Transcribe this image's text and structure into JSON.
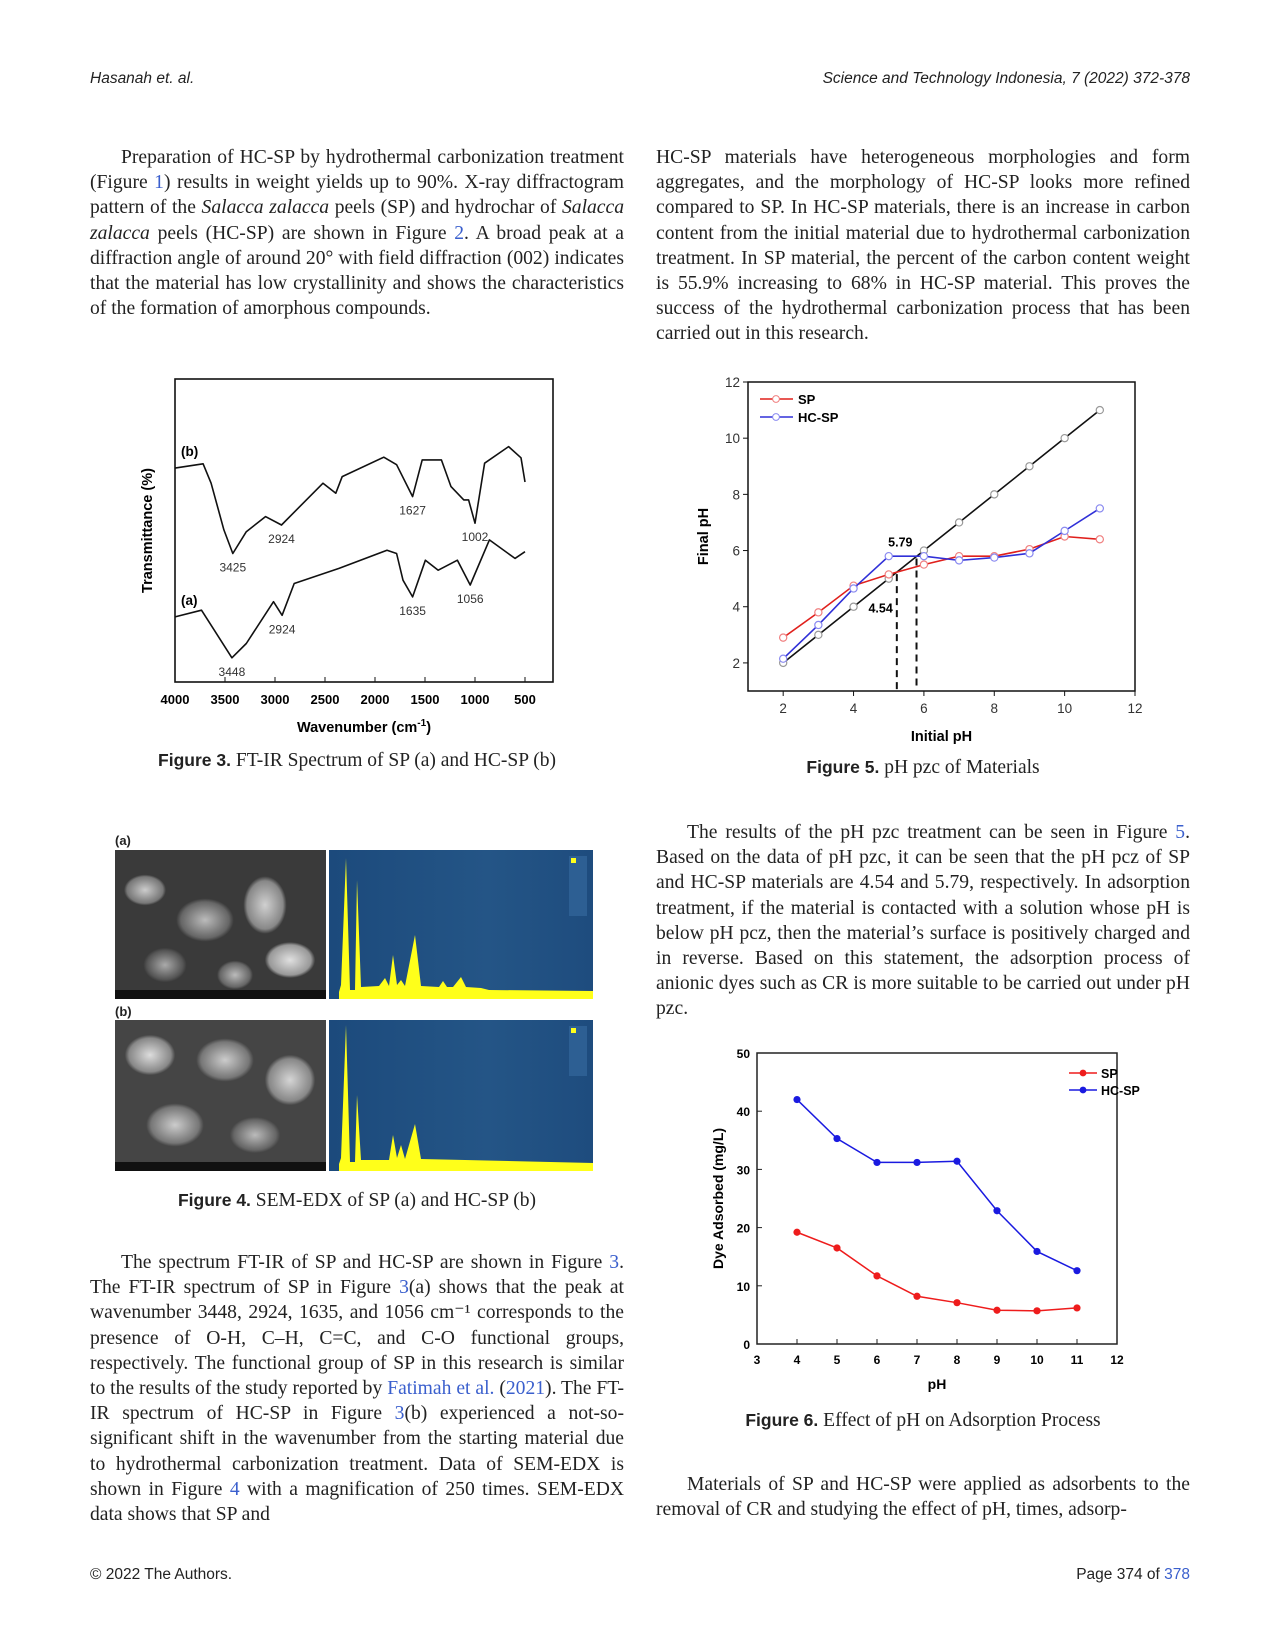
{
  "header": {
    "left": "Hasanah et. al.",
    "right": "Science and Technology Indonesia, 7 (2022) 372-378"
  },
  "footer": {
    "copyright": "© 2022 The Authors.",
    "page_prefix": "Page 374 of ",
    "page_total": "378"
  },
  "paragraphs": {
    "left1": [
      {
        "t": "Preparation of HC-SP by hydrothermal carbonization treatment (Figure "
      },
      {
        "t": "1",
        "link": true
      },
      {
        "t": ") results in weight yields up to 90%. X-ray diffractogram pattern of the "
      },
      {
        "t": "Salacca zalacca",
        "i": true
      },
      {
        "t": " peels (SP) and hydrochar of "
      },
      {
        "t": "Salacca zalacca",
        "i": true
      },
      {
        "t": " peels (HC-SP) are shown in Figure "
      },
      {
        "t": "2",
        "link": true
      },
      {
        "t": ". A broad peak at a diffraction angle of around 20° with field diffraction (002) indicates that the material has low crystallinity and shows the characteristics of the formation of amorphous compounds."
      }
    ],
    "left2": [
      {
        "t": "The spectrum FT-IR of SP and HC-SP are shown in Figure "
      },
      {
        "t": "3",
        "link": true
      },
      {
        "t": ". The FT-IR spectrum of SP in Figure "
      },
      {
        "t": "3",
        "link": true
      },
      {
        "t": "(a) shows that the peak at wavenumber 3448, 2924, 1635, and 1056 cm⁻¹ corresponds to the presence of O-H, C–H, C=C, and C-O functional groups, respectively. The functional group of SP in this research is similar to the results of the study reported by "
      },
      {
        "t": "Fatimah et al.",
        "link": true
      },
      {
        "t": " ("
      },
      {
        "t": "2021",
        "link": true
      },
      {
        "t": "). The FT-IR spectrum of HC-SP in Figure "
      },
      {
        "t": "3",
        "link": true
      },
      {
        "t": "(b) experienced a not-so-significant shift in the wavenumber from the starting material due to hydrothermal carbonization treatment. Data of SEM-EDX is shown in Figure "
      },
      {
        "t": "4",
        "link": true
      },
      {
        "t": " with a magnification of 250 times. SEM-EDX data shows that SP and"
      }
    ],
    "right1": [
      {
        "t": "HC-SP materials have heterogeneous morphologies and form aggregates, and the morphology of HC-SP looks more refined compared to SP. In HC-SP materials, there is an increase in carbon content from the initial material due to hydrothermal carbonization treatment. In SP material, the percent of the carbon content weight is 55.9% increasing to 68% in HC-SP material. This proves the success of the hydrothermal carbonization process that has been carried out in this research."
      }
    ],
    "right2": [
      {
        "t": "The results of the pH pzc treatment can be seen in Figure "
      },
      {
        "t": "5",
        "link": true
      },
      {
        "t": ". Based on the data of pH pzc, it can be seen that the pH pcz of SP and HC-SP materials are 4.54 and 5.79, respectively. In adsorption treatment, if the material is contacted with a solution whose pH is below pH pcz, then the material’s surface is positively charged and in reverse. Based on this statement, the adsorption process of anionic dyes such as CR is more suitable to be carried out under pH pzc."
      }
    ],
    "right3": [
      {
        "t": "Materials of SP and HC-SP were applied as adsorbents to the removal of CR and studying the effect of pH, times, adsorp-"
      }
    ]
  },
  "figures": {
    "fig3": {
      "label": "Figure 3.",
      "caption": " FT-IR Spectrum of SP (a) and HC-SP (b)"
    },
    "fig4": {
      "label": "Figure 4.",
      "caption": " SEM-EDX of SP (a) and HC-SP (b)",
      "panel_a": "(a)",
      "panel_b": "(b)"
    },
    "fig5": {
      "label": "Figure 5.",
      "caption": " pH pzc of Materials"
    },
    "fig6": {
      "label": "Figure 6.",
      "caption": " Effect of pH on Adsorption Process"
    }
  },
  "chart_data": [
    {
      "id": "fig3",
      "type": "line",
      "xlabel": "Wavenumber (cm",
      "xlabel_sup": "-1",
      "xlabel_end": ")",
      "ylabel": "Transmittance (%)",
      "xlim": [
        4000,
        500
      ],
      "xticks": [
        "4000",
        "3500",
        "3000",
        "2500",
        "2000",
        "1500",
        "1000",
        "500"
      ],
      "series": [
        {
          "name": "(b)",
          "color": "#111111",
          "points": [
            [
              4000,
              70.6
            ],
            [
              3719,
              72
            ],
            [
              3639,
              65.6
            ],
            [
              3511,
              50.2
            ],
            [
              3422,
              42.4
            ],
            [
              3287,
              49.6
            ],
            [
              3095,
              54.6
            ],
            [
              2935,
              51.8
            ],
            [
              2839,
              55
            ],
            [
              2520,
              65.6
            ],
            [
              2392,
              62.3
            ],
            [
              2328,
              67.8
            ],
            [
              1912,
              74.2
            ],
            [
              1784,
              71.7
            ],
            [
              1624,
              61.2
            ],
            [
              1528,
              73.3
            ],
            [
              1336,
              73.3
            ],
            [
              1240,
              64.5
            ],
            [
              1112,
              60.1
            ],
            [
              1064,
              60.1
            ],
            [
              1000,
              52.4
            ],
            [
              904,
              72.2
            ],
            [
              664,
              77.7
            ],
            [
              540,
              74
            ],
            [
              500,
              66
            ]
          ]
        },
        {
          "name": "(a)",
          "color": "#111111",
          "points": [
            [
              4000,
              21.5
            ],
            [
              3735,
              23.7
            ],
            [
              3607,
              17.1
            ],
            [
              3431,
              8
            ],
            [
              3287,
              12.7
            ],
            [
              3015,
              26.5
            ],
            [
              2929,
              22
            ],
            [
              2808,
              32.5
            ],
            [
              2360,
              37.5
            ],
            [
              1880,
              43.5
            ],
            [
              1784,
              42.4
            ],
            [
              1720,
              33.6
            ],
            [
              1624,
              28.1
            ],
            [
              1496,
              40.2
            ],
            [
              1368,
              36.9
            ],
            [
              1176,
              40.2
            ],
            [
              1048,
              32
            ],
            [
              856,
              46.9
            ],
            [
              600,
              40.8
            ],
            [
              500,
              43
            ]
          ]
        }
      ],
      "peak_labels": [
        {
          "text": "3425",
          "wn": 3422,
          "t": 42.4
        },
        {
          "text": "2924",
          "wn": 2935,
          "t": 51.8
        },
        {
          "text": "1627",
          "wn": 1624,
          "t": 61.2
        },
        {
          "text": "1002",
          "wn": 1000,
          "t": 52.4
        },
        {
          "text": "3448",
          "wn": 3431,
          "t": 8
        },
        {
          "text": "2924",
          "wn": 2929,
          "t": 22
        },
        {
          "text": "1635",
          "wn": 1624,
          "t": 28.1
        },
        {
          "text": "1056",
          "wn": 1048,
          "t": 32
        }
      ]
    },
    {
      "id": "fig5",
      "type": "line",
      "xlabel": "Initial pH",
      "ylabel": "Final pH",
      "xlim": [
        1,
        12
      ],
      "ylim": [
        1,
        12
      ],
      "xticks": [
        2,
        4,
        6,
        8,
        10,
        12
      ],
      "yticks": [
        2,
        4,
        6,
        8,
        10,
        12
      ],
      "x": [
        2,
        3,
        4,
        5,
        6,
        7,
        8,
        9,
        10,
        11
      ],
      "reference": {
        "name": "pHi = pHf",
        "color": "#111111",
        "values": [
          2,
          3,
          4,
          5,
          6,
          7,
          8,
          9,
          10,
          11
        ]
      },
      "series": [
        {
          "name": "SP",
          "color": "#e0201c",
          "values": [
            2.9,
            3.8,
            4.75,
            5.15,
            5.5,
            5.8,
            5.8,
            6.05,
            6.5,
            6.4
          ]
        },
        {
          "name": "HC-SP",
          "color": "#3030d8",
          "values": [
            2.15,
            3.35,
            4.65,
            5.8,
            5.8,
            5.65,
            5.75,
            5.9,
            6.7,
            7.5
          ]
        }
      ],
      "annotations": [
        {
          "text": "4.54",
          "x": 5.23
        },
        {
          "text": "5.79",
          "x": 5.79
        }
      ],
      "legend": "top-left"
    },
    {
      "id": "fig6",
      "type": "line",
      "xlabel": "pH",
      "ylabel": "Dye Adsorbed (mg/L)",
      "xlim": [
        3,
        12
      ],
      "ylim": [
        0,
        50
      ],
      "xticks": [
        3,
        4,
        5,
        6,
        7,
        8,
        9,
        10,
        11,
        12
      ],
      "yticks": [
        0,
        10,
        20,
        30,
        40,
        50
      ],
      "x": [
        4,
        5,
        6,
        7,
        8,
        9,
        10,
        11
      ],
      "series": [
        {
          "name": "SP",
          "color": "#ee1c1c",
          "values": [
            19.2,
            16.5,
            11.7,
            8.2,
            7.1,
            5.8,
            5.7,
            6.2
          ]
        },
        {
          "name": "HC-SP",
          "color": "#1a1ae0",
          "values": [
            42,
            35.3,
            31.2,
            31.2,
            31.4,
            22.9,
            15.9,
            12.6
          ]
        }
      ],
      "legend": "top-right"
    }
  ]
}
